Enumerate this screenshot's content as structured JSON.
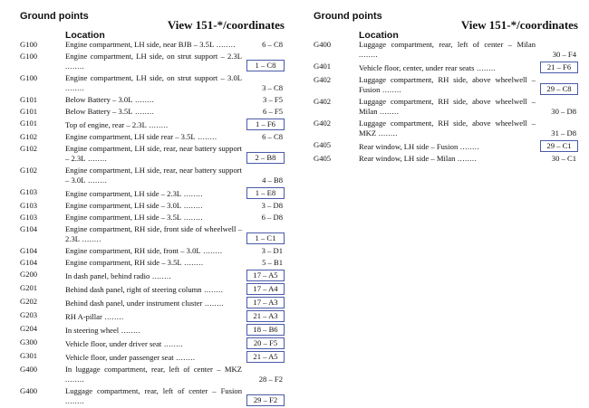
{
  "columns": [
    {
      "header": {
        "title": "Ground points",
        "view": "View 151-*/coordinates",
        "location": "Location"
      },
      "rows": [
        {
          "id": "G100",
          "location": "Engine compartment, LH side, near BJB – 3.5L",
          "ref": "6 – C8",
          "boxed": false
        },
        {
          "id": "G100",
          "location": "Engine compartment, LH side, on strut support – 2.3L",
          "ref": "1 – C8",
          "boxed": true
        },
        {
          "id": "G100",
          "location": "Engine compartment, LH side, on strut support – 3.0L",
          "ref": "3 – C8",
          "boxed": false
        },
        {
          "id": "G101",
          "location": "Below Battery – 3.0L",
          "ref": "3 – F5",
          "boxed": false
        },
        {
          "id": "G101",
          "location": "Below Battery – 3.5L",
          "ref": "6 – F5",
          "boxed": false
        },
        {
          "id": "G101",
          "location": "Top of engine, rear – 2.3L",
          "ref": "1 – F6",
          "boxed": true
        },
        {
          "id": "G102",
          "location": "Engine compartment, LH side rear – 3.5L",
          "ref": "6 – C8",
          "boxed": false
        },
        {
          "id": "G102",
          "location": "Engine compartment, LH side, rear, near battery support – 2.3L",
          "ref": "2 – B8",
          "boxed": true
        },
        {
          "id": "G102",
          "location": "Engine compartment, LH side, rear, near battery support – 3.0L",
          "ref": "4 – B8",
          "boxed": false
        },
        {
          "id": "G103",
          "location": "Engine compartment, LH side – 2.3L",
          "ref": "1 – E8",
          "boxed": true
        },
        {
          "id": "G103",
          "location": "Engine compartment, LH side – 3.0L",
          "ref": "3 – D8",
          "boxed": false
        },
        {
          "id": "G103",
          "location": "Engine compartment, LH side – 3.5L",
          "ref": "6 – D8",
          "boxed": false
        },
        {
          "id": "G104",
          "location": "Engine compartment, RH side, front side of wheelwell – 2.3L",
          "ref": "1 – C1",
          "boxed": true
        },
        {
          "id": "G104",
          "location": "Engine compartment, RH side, front – 3.0L",
          "ref": "3 – D1",
          "boxed": false
        },
        {
          "id": "G104",
          "location": "Engine compartment, RH side – 3.5L",
          "ref": "5 – B1",
          "boxed": false
        },
        {
          "id": "G200",
          "location": "In dash panel, behind radio",
          "ref": "17 – A5",
          "boxed": true
        },
        {
          "id": "G201",
          "location": "Behind dash panel, right of steering column",
          "ref": "17 – A4",
          "boxed": true
        },
        {
          "id": "G202",
          "location": "Behind dash panel, under instrument cluster",
          "ref": "17 – A3",
          "boxed": true
        },
        {
          "id": "G203",
          "location": "RH A-pillar",
          "ref": "21 – A3",
          "boxed": true
        },
        {
          "id": "G204",
          "location": "In steering wheel",
          "ref": "18 – B6",
          "boxed": true
        },
        {
          "id": "G300",
          "location": "Vehicle floor, under driver seat",
          "ref": "20 – F5",
          "boxed": true
        },
        {
          "id": "G301",
          "location": "Vehicle floor, under passenger seat",
          "ref": "21 – A5",
          "boxed": true
        },
        {
          "id": "G400",
          "location": "In luggage compartment, rear, left of center – MKZ",
          "ref": "28 – F2",
          "boxed": false
        },
        {
          "id": "G400",
          "location": "Luggage compartment, rear, left of center – Fusion",
          "ref": "29 – F2",
          "boxed": true
        }
      ]
    },
    {
      "header": {
        "title": "Ground points",
        "view": "View 151-*/coordinates",
        "location": "Location"
      },
      "rows": [
        {
          "id": "G400",
          "location": "Luggage compartment, rear, left of center – Milan",
          "ref": "30 – F4",
          "boxed": false
        },
        {
          "id": "G401",
          "location": "Vehicle floor, center, under rear seats",
          "ref": "21 – F6",
          "boxed": true
        },
        {
          "id": "G402",
          "location": "Luggage compartment, RH side, above wheelwell – Fusion",
          "ref": "29 – C8",
          "boxed": true
        },
        {
          "id": "G402",
          "location": "Luggage compartment, RH side, above wheelwell – Milan",
          "ref": "30 – D8",
          "boxed": false
        },
        {
          "id": "G402",
          "location": "Luggage compartment, RH side, above wheelwell – MKZ",
          "ref": "31 – D8",
          "boxed": false
        },
        {
          "id": "G405",
          "location": "Rear window, LH side – Fusion",
          "ref": "29 – C1",
          "boxed": true
        },
        {
          "id": "G405",
          "location": "Rear window, LH side – Milan",
          "ref": "30 – C1",
          "boxed": false
        }
      ]
    }
  ]
}
